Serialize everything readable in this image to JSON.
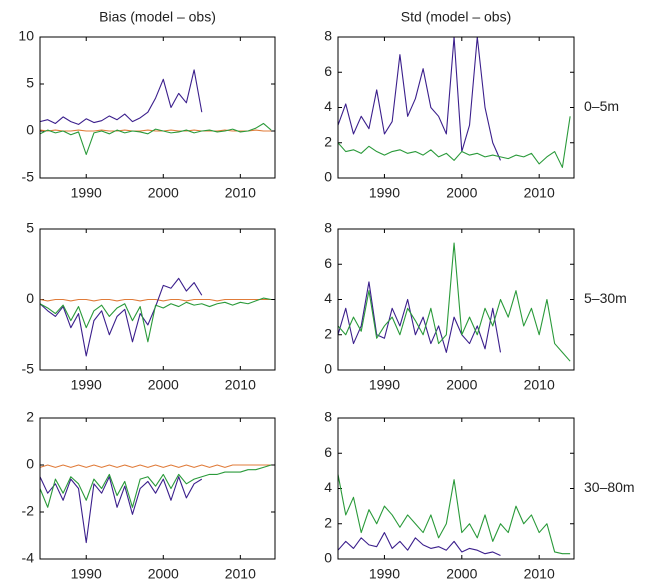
{
  "chart_data": [
    {
      "type": "line",
      "title": "Bias (model – obs)",
      "x": [
        1984,
        1985,
        1986,
        1987,
        1988,
        1989,
        1990,
        1991,
        1992,
        1993,
        1994,
        1995,
        1996,
        1997,
        1998,
        1999,
        2000,
        2001,
        2002,
        2003,
        2004,
        2005,
        2006,
        2007,
        2008,
        2009,
        2010,
        2011,
        2012,
        2013,
        2014
      ],
      "xlim": [
        1984,
        2014.5
      ],
      "xticks": [
        1990,
        2000,
        2010
      ],
      "ylim": [
        -5,
        10
      ],
      "yticks": [
        -5,
        0,
        5,
        10
      ],
      "series": [
        {
          "color": "#e07b39",
          "values": [
            0.1,
            0,
            0.1,
            0,
            0,
            0.1,
            0,
            0,
            0.1,
            0,
            0,
            0.1,
            0,
            0,
            0.1,
            0,
            0,
            0.1,
            0,
            0,
            0.1,
            0,
            0,
            0,
            0.1,
            0,
            0,
            0,
            0.1,
            0,
            0
          ]
        },
        {
          "color": "#3b1f8c",
          "values": [
            1.0,
            1.2,
            0.8,
            1.5,
            1.0,
            0.7,
            1.3,
            0.9,
            1.1,
            1.6,
            1.2,
            1.8,
            1.0,
            1.4,
            2.0,
            3.5,
            5.5,
            2.5,
            4.0,
            3.0,
            6.5,
            2.0,
            null,
            null,
            null,
            null,
            null,
            null,
            null,
            null,
            null
          ]
        },
        {
          "color": "#2a9a3a",
          "values": [
            -0.3,
            0.1,
            -0.2,
            0,
            -0.4,
            -0.1,
            -2.5,
            -0.2,
            0,
            -0.3,
            0.1,
            -0.2,
            0,
            -0.1,
            -0.3,
            0.2,
            0,
            -0.2,
            -0.1,
            0.1,
            -0.2,
            0,
            0.1,
            -0.1,
            0,
            0.2,
            -0.1,
            0,
            0.3,
            0.8,
            0.1
          ]
        }
      ]
    },
    {
      "type": "line",
      "title": "Std  (model – obs)",
      "annotation": "0–5m",
      "x": [
        1984,
        1985,
        1986,
        1987,
        1988,
        1989,
        1990,
        1991,
        1992,
        1993,
        1994,
        1995,
        1996,
        1997,
        1998,
        1999,
        2000,
        2001,
        2002,
        2003,
        2004,
        2005,
        2006,
        2007,
        2008,
        2009,
        2010,
        2011,
        2012,
        2013,
        2014
      ],
      "xlim": [
        1984,
        2014.5
      ],
      "xticks": [
        1990,
        2000,
        2010
      ],
      "ylim": [
        0,
        8
      ],
      "yticks": [
        0,
        2,
        4,
        6,
        8
      ],
      "series": [
        {
          "color": "#3b1f8c",
          "values": [
            3.0,
            4.2,
            2.5,
            3.5,
            2.8,
            5.0,
            2.5,
            3.2,
            7.0,
            3.5,
            4.5,
            6.2,
            4.0,
            3.5,
            2.5,
            8.0,
            1.5,
            3.0,
            8.0,
            4.0,
            2.0,
            1.0,
            null,
            null,
            null,
            null,
            null,
            null,
            null,
            null,
            null
          ]
        },
        {
          "color": "#2a9a3a",
          "values": [
            2.0,
            1.5,
            1.6,
            1.4,
            1.8,
            1.5,
            1.3,
            1.5,
            1.6,
            1.4,
            1.5,
            1.3,
            1.6,
            1.2,
            1.4,
            1.0,
            1.5,
            1.3,
            1.4,
            1.2,
            1.3,
            1.2,
            1.1,
            1.3,
            1.2,
            1.4,
            0.8,
            1.2,
            1.5,
            0.6,
            3.5
          ]
        }
      ]
    },
    {
      "type": "line",
      "x": [
        1984,
        1985,
        1986,
        1987,
        1988,
        1989,
        1990,
        1991,
        1992,
        1993,
        1994,
        1995,
        1996,
        1997,
        1998,
        1999,
        2000,
        2001,
        2002,
        2003,
        2004,
        2005,
        2006,
        2007,
        2008,
        2009,
        2010,
        2011,
        2012,
        2013,
        2014
      ],
      "xlim": [
        1984,
        2014.5
      ],
      "xticks": [
        1990,
        2000,
        2010
      ],
      "ylim": [
        -5,
        5
      ],
      "yticks": [
        -5,
        0,
        5
      ],
      "series": [
        {
          "color": "#e07b39",
          "values": [
            0,
            -0.1,
            0,
            0,
            -0.1,
            0,
            0,
            -0.1,
            0,
            0,
            -0.1,
            0,
            0,
            -0.1,
            0,
            0,
            -0.1,
            0,
            0,
            -0.1,
            0,
            0,
            0,
            -0.1,
            0,
            0,
            0,
            0,
            0,
            0,
            0
          ]
        },
        {
          "color": "#3b1f8c",
          "values": [
            -0.3,
            -0.8,
            -1.2,
            -0.5,
            -2.0,
            -1.0,
            -4.0,
            -1.5,
            -0.8,
            -2.5,
            -1.2,
            -0.7,
            -3.0,
            -1.0,
            -1.8,
            -0.5,
            1.0,
            0.8,
            1.5,
            0.6,
            1.2,
            0.3,
            null,
            null,
            null,
            null,
            null,
            null,
            null,
            null,
            null
          ]
        },
        {
          "color": "#2a9a3a",
          "values": [
            -0.3,
            -0.6,
            -1.0,
            -0.4,
            -1.5,
            -0.5,
            -2.0,
            -0.8,
            -0.4,
            -1.2,
            -0.6,
            -0.3,
            -1.5,
            -0.5,
            -3.0,
            -0.4,
            -0.6,
            -0.3,
            -0.5,
            -0.2,
            -0.4,
            -0.3,
            -0.5,
            -0.3,
            -0.2,
            -0.4,
            -0.2,
            -0.3,
            -0.1,
            0.1,
            0.0
          ]
        }
      ]
    },
    {
      "type": "line",
      "annotation": "5–30m",
      "x": [
        1984,
        1985,
        1986,
        1987,
        1988,
        1989,
        1990,
        1991,
        1992,
        1993,
        1994,
        1995,
        1996,
        1997,
        1998,
        1999,
        2000,
        2001,
        2002,
        2003,
        2004,
        2005,
        2006,
        2007,
        2008,
        2009,
        2010,
        2011,
        2012,
        2013,
        2014
      ],
      "xlim": [
        1984,
        2014.5
      ],
      "xticks": [
        1990,
        2000,
        2010
      ],
      "ylim": [
        0,
        8
      ],
      "yticks": [
        0,
        2,
        4,
        6,
        8
      ],
      "series": [
        {
          "color": "#3b1f8c",
          "values": [
            2.0,
            3.5,
            1.5,
            2.5,
            5.0,
            2.0,
            1.8,
            3.5,
            2.5,
            4.0,
            2.0,
            3.0,
            1.5,
            2.5,
            1.0,
            3.0,
            2.0,
            1.5,
            2.5,
            1.2,
            3.5,
            1.0,
            null,
            null,
            null,
            null,
            null,
            null,
            null,
            null,
            null
          ]
        },
        {
          "color": "#2a9a3a",
          "values": [
            2.5,
            2.0,
            3.0,
            2.2,
            4.5,
            1.8,
            2.5,
            3.0,
            2.0,
            3.5,
            2.8,
            2.0,
            3.5,
            1.5,
            2.0,
            7.2,
            2.0,
            3.0,
            2.0,
            3.5,
            2.5,
            4.0,
            3.0,
            4.5,
            2.5,
            3.5,
            2.0,
            4.0,
            1.5,
            1.0,
            0.5
          ]
        }
      ]
    },
    {
      "type": "line",
      "x": [
        1984,
        1985,
        1986,
        1987,
        1988,
        1989,
        1990,
        1991,
        1992,
        1993,
        1994,
        1995,
        1996,
        1997,
        1998,
        1999,
        2000,
        2001,
        2002,
        2003,
        2004,
        2005,
        2006,
        2007,
        2008,
        2009,
        2010,
        2011,
        2012,
        2013,
        2014
      ],
      "xlim": [
        1984,
        2014.5
      ],
      "xticks": [
        1990,
        2000,
        2010
      ],
      "ylim": [
        -4,
        2
      ],
      "yticks": [
        -4,
        -2,
        0,
        2
      ],
      "series": [
        {
          "color": "#e07b39",
          "values": [
            -0.1,
            0,
            -0.1,
            0,
            -0.1,
            0,
            -0.1,
            0,
            -0.1,
            0,
            -0.1,
            0,
            -0.1,
            0,
            -0.1,
            0,
            -0.1,
            0,
            -0.1,
            0,
            -0.1,
            0,
            -0.1,
            0,
            -0.1,
            0,
            0,
            0,
            0,
            0,
            0
          ]
        },
        {
          "color": "#3b1f8c",
          "values": [
            -0.5,
            -1.2,
            -0.8,
            -1.5,
            -0.6,
            -1.0,
            -3.3,
            -0.8,
            -1.2,
            -0.5,
            -1.8,
            -0.9,
            -2.1,
            -1.0,
            -0.7,
            -1.2,
            -0.6,
            -1.5,
            -0.5,
            -1.4,
            -0.8,
            -0.6,
            null,
            null,
            null,
            null,
            null,
            null,
            null,
            null,
            null
          ]
        },
        {
          "color": "#2a9a3a",
          "values": [
            -1.0,
            -1.8,
            -0.6,
            -1.2,
            -0.5,
            -0.8,
            -1.5,
            -0.6,
            -1.0,
            -0.4,
            -1.3,
            -0.7,
            -1.8,
            -0.6,
            -0.5,
            -0.9,
            -0.4,
            -1.0,
            -0.4,
            -0.8,
            -0.6,
            -0.5,
            -0.4,
            -0.4,
            -0.3,
            -0.3,
            -0.3,
            -0.2,
            -0.2,
            -0.1,
            0.0
          ]
        }
      ]
    },
    {
      "type": "line",
      "annotation": "30–80m",
      "x": [
        1984,
        1985,
        1986,
        1987,
        1988,
        1989,
        1990,
        1991,
        1992,
        1993,
        1994,
        1995,
        1996,
        1997,
        1998,
        1999,
        2000,
        2001,
        2002,
        2003,
        2004,
        2005,
        2006,
        2007,
        2008,
        2009,
        2010,
        2011,
        2012,
        2013,
        2014
      ],
      "xlim": [
        1984,
        2014.5
      ],
      "xticks": [
        1990,
        2000,
        2010
      ],
      "ylim": [
        0,
        8
      ],
      "yticks": [
        0,
        2,
        4,
        6,
        8
      ],
      "series": [
        {
          "color": "#3b1f8c",
          "values": [
            0.5,
            1.0,
            0.6,
            1.2,
            0.8,
            0.7,
            1.5,
            0.6,
            1.0,
            0.5,
            1.2,
            0.8,
            0.6,
            0.7,
            0.5,
            1.0,
            0.4,
            0.6,
            0.5,
            0.3,
            0.4,
            0.2,
            null,
            null,
            null,
            null,
            null,
            null,
            null,
            null,
            null
          ]
        },
        {
          "color": "#2a9a3a",
          "values": [
            4.8,
            2.5,
            3.5,
            1.5,
            2.8,
            2.0,
            3.0,
            2.5,
            1.8,
            2.5,
            2.0,
            1.5,
            2.5,
            1.2,
            2.0,
            4.5,
            1.5,
            2.0,
            1.2,
            2.5,
            1.0,
            2.0,
            1.5,
            3.0,
            2.0,
            2.5,
            1.5,
            2.0,
            0.4,
            0.3,
            0.3
          ]
        }
      ]
    }
  ]
}
